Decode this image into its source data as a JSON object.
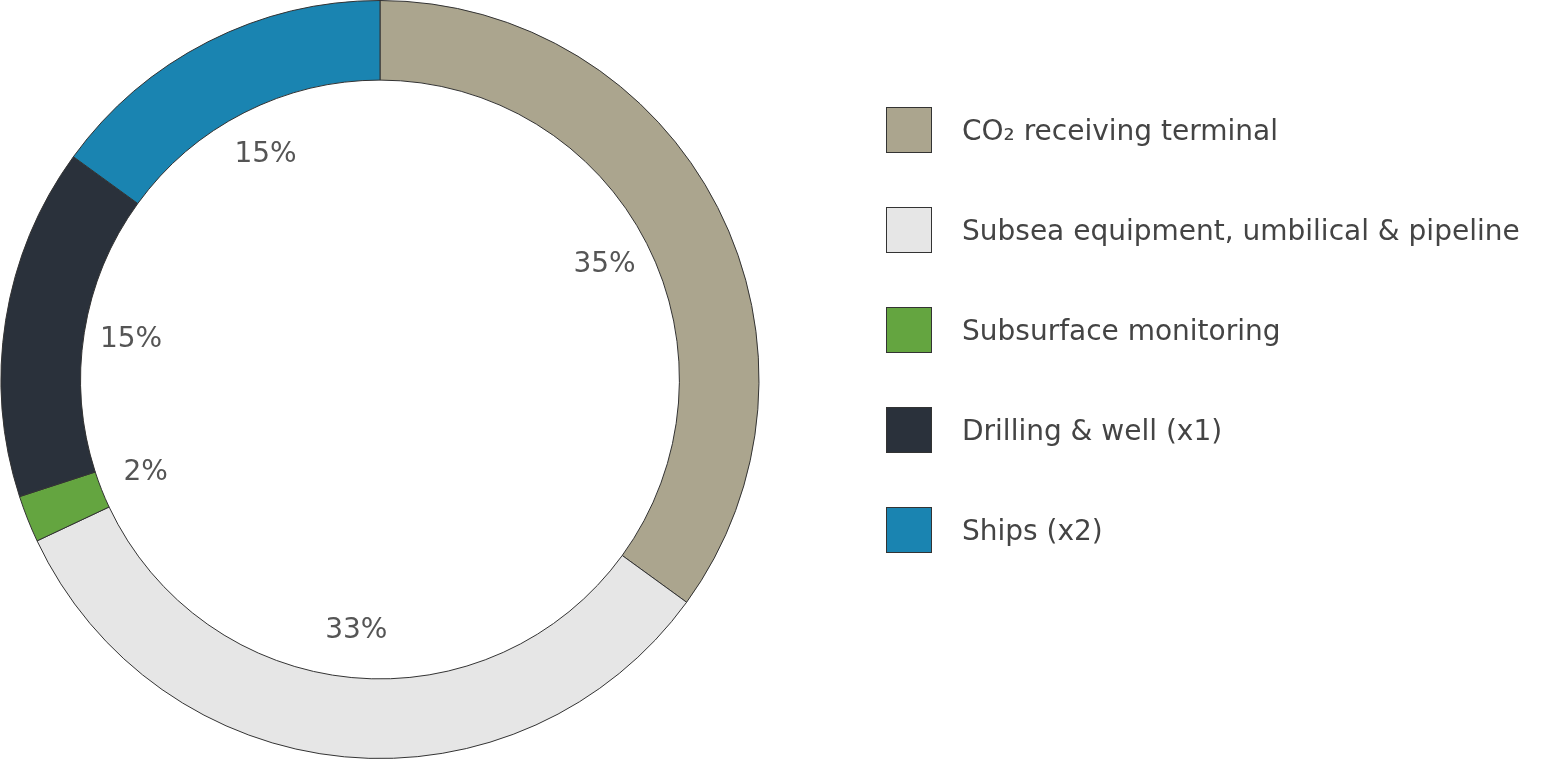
{
  "chart_data": {
    "type": "donut",
    "categories": [
      "CO₂ receiving terminal",
      "Subsea equipment, umbilical & pipeline",
      "Subsurface monitoring",
      "Drilling & well (x1)",
      "Ships (x2)"
    ],
    "values": [
      35,
      33,
      2,
      15,
      15
    ],
    "colors": [
      "#aba58e",
      "#e6e6e6",
      "#64a540",
      "#2a313b",
      "#1a84b1"
    ],
    "value_labels": [
      "35%",
      "33%",
      "2%",
      "15%",
      "15%"
    ],
    "legend": "right"
  }
}
